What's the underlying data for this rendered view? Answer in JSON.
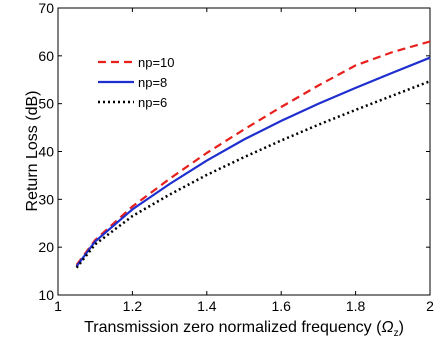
{
  "chart_data": {
    "type": "line",
    "xlabel": "Transmission zero normalized frequency (",
    "xlabel_symbol": "Ω",
    "xlabel_subscript": "z",
    "xlabel_close": ")",
    "ylabel": "Return Loss (dB)",
    "xlim": [
      1,
      2
    ],
    "ylim": [
      10,
      70
    ],
    "x_ticks": [
      1,
      1.2,
      1.4,
      1.6,
      1.8,
      2
    ],
    "x_tick_labels": [
      "1",
      "1.2",
      "1.4",
      "1.6",
      "1.8",
      "2"
    ],
    "y_ticks": [
      10,
      20,
      30,
      40,
      50,
      60,
      70
    ],
    "y_tick_labels": [
      "10",
      "20",
      "30",
      "40",
      "50",
      "60",
      "70"
    ],
    "grid": false,
    "legend_position": "top-left",
    "x": [
      1.05,
      1.1,
      1.2,
      1.3,
      1.4,
      1.5,
      1.6,
      1.7,
      1.8,
      1.9,
      2.0
    ],
    "series": [
      {
        "name": "np=10",
        "color": "#e8201c",
        "style": "dashed",
        "values": [
          16.3,
          21.5,
          28.5,
          34.3,
          39.7,
          44.6,
          49.3,
          53.8,
          58.0,
          60.8,
          63.0
        ]
      },
      {
        "name": "np=8",
        "color": "#1f2fcf",
        "style": "solid",
        "values": [
          16.0,
          21.2,
          27.9,
          33.2,
          38.1,
          42.5,
          46.4,
          50.0,
          53.3,
          56.5,
          59.6
        ]
      },
      {
        "name": "np=6",
        "color": "#000000",
        "style": "dotted",
        "values": [
          15.7,
          20.6,
          26.5,
          31.0,
          35.1,
          38.8,
          42.3,
          45.6,
          48.7,
          51.7,
          54.7
        ]
      }
    ]
  }
}
